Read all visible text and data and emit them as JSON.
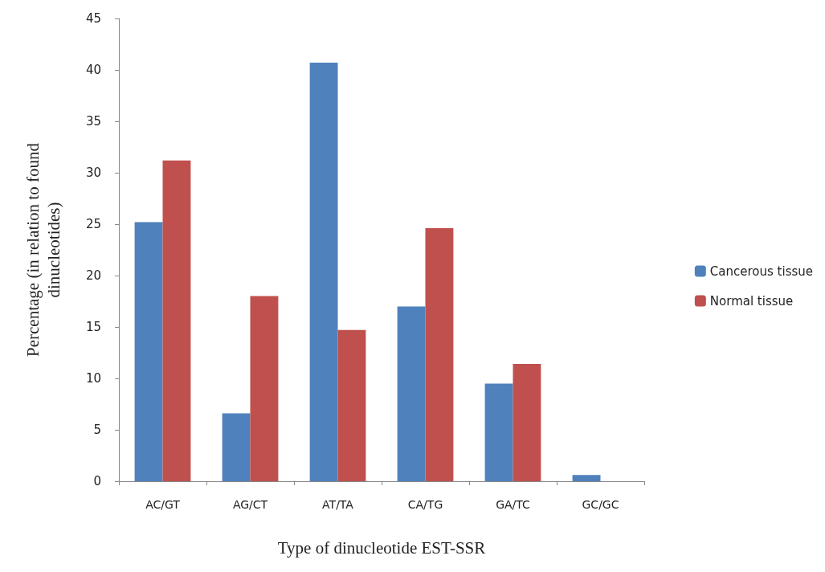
{
  "chart_data": {
    "type": "bar",
    "xlabel": "Type of dinucleotide EST-SSR",
    "ylabel": "Percentage (in relation to found\ndinucleotides)",
    "categories": [
      "AC/GT",
      "AG/CT",
      "AT/TA",
      "CA/TG",
      "GA/TC",
      "GC/GC"
    ],
    "series": [
      {
        "name": "Cancerous tissue",
        "color": "#4f81bd",
        "values": [
          25.2,
          6.6,
          40.7,
          17.0,
          9.5,
          0.6
        ]
      },
      {
        "name": "Normal tissue",
        "color": "#c0504d",
        "values": [
          31.2,
          18.0,
          14.7,
          24.6,
          11.4,
          0
        ]
      }
    ],
    "ylim": [
      0,
      45
    ],
    "yticks": [
      0,
      5,
      10,
      15,
      20,
      25,
      30,
      35,
      40,
      45
    ],
    "grid": false,
    "legend": "right"
  }
}
